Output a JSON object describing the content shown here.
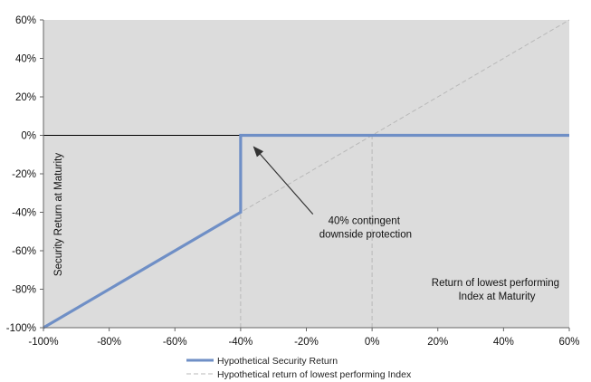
{
  "chart_data": {
    "type": "line",
    "title": "",
    "xlabel": "Return of lowest performing Index at Maturity",
    "xlabel_lines": [
      "Return of lowest performing",
      "Index at Maturity"
    ],
    "ylabel": "Security Return at Maturity",
    "xlim": [
      -100,
      60
    ],
    "ylim": [
      -100,
      60
    ],
    "x_ticks": [
      -100,
      -80,
      -60,
      -40,
      -20,
      0,
      20,
      40,
      60
    ],
    "y_ticks": [
      -100,
      -80,
      -60,
      -40,
      -20,
      0,
      20,
      40,
      60
    ],
    "x_tick_labels": [
      "-100%",
      "-80%",
      "-60%",
      "-40%",
      "-20%",
      "0%",
      "20%",
      "40%",
      "60%"
    ],
    "y_tick_labels": [
      "-100%",
      "-80%",
      "-60%",
      "-40%",
      "-20%",
      "0%",
      "20%",
      "40%",
      "60%"
    ],
    "series": [
      {
        "name": "Hypothetical Security Return",
        "style": "solid",
        "color": "#6f8fc6",
        "points": [
          [
            -100,
            -100
          ],
          [
            -40,
            -40
          ],
          [
            -40,
            0
          ],
          [
            60,
            0
          ]
        ]
      },
      {
        "name": "Hypothetical return of lowest performing Index",
        "style": "dashed",
        "color": "#b8b8b8",
        "points": [
          [
            -100,
            -100
          ],
          [
            60,
            60
          ]
        ]
      }
    ],
    "reference_lines": [
      {
        "axis": "y",
        "value": 0,
        "style": "solid",
        "color": "#000000"
      },
      {
        "axis": "x",
        "value": -40,
        "from": -100,
        "to": -40,
        "style": "dashed",
        "color": "#b8b8b8"
      },
      {
        "axis": "x",
        "value": 0,
        "from": -100,
        "to": 0,
        "style": "dashed",
        "color": "#b8b8b8"
      }
    ],
    "annotation": {
      "text_lines": [
        "40% contingent",
        "downside protection"
      ],
      "text_at": [
        -2,
        -46
      ],
      "arrow_from": [
        -18,
        -41
      ],
      "arrow_to": [
        -36,
        -6
      ]
    },
    "legend_position": "bottom-center",
    "grid": false,
    "plot_background": "#dcdcdc"
  }
}
